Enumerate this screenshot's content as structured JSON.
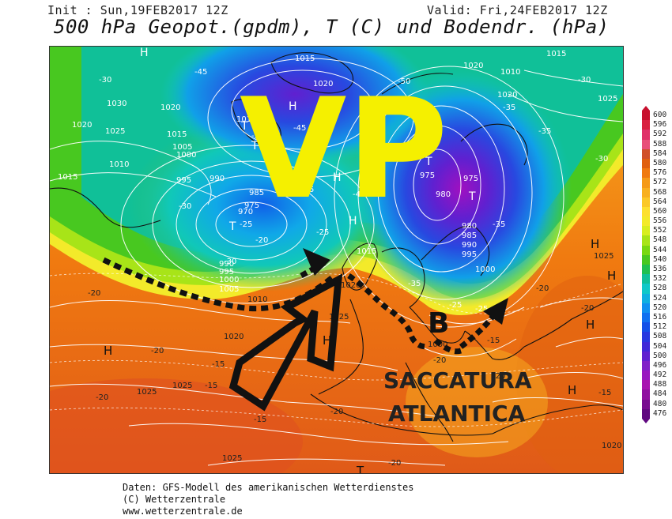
{
  "header": {
    "init": "Init : Sun,19FEB2017 12Z",
    "valid": "Valid: Fri,24FEB2017 12Z",
    "title": "500 hPa Geopot.(gpdm), T (C) und Bodendr. (hPa)"
  },
  "annotations": {
    "vp": "VP",
    "b": "B",
    "saccatura_line1": "SACCATURA",
    "saccatura_line2": "ATLANTICA"
  },
  "pressure_centers": {
    "high": "H",
    "low": "T"
  },
  "contour_labels": {
    "isobars": [
      "1015",
      "1025",
      "1020",
      "1010",
      "1020",
      "1030",
      "1020",
      "1025",
      "1015",
      "1005",
      "1000",
      "995",
      "1010",
      "1015",
      "990",
      "985",
      "975",
      "970",
      "1020",
      "1010",
      "1015",
      "1020",
      "975",
      "980",
      "975",
      "980",
      "985",
      "990",
      "995",
      "1000",
      "1015",
      "1020",
      "1025",
      "990",
      "995",
      "1000",
      "1005",
      "1010",
      "1020",
      "1025",
      "1025",
      "1025",
      "1025",
      "1025",
      "1015",
      "1000",
      "1020"
    ],
    "temperatures": [
      "-30",
      "-45",
      "-35",
      "-35",
      "-30",
      "-30",
      "-35",
      "-45",
      "-50",
      "-35",
      "-40",
      "-30",
      "-25",
      "-20",
      "-25",
      "-30",
      "-20",
      "-15",
      "-35",
      "-25",
      "-20",
      "-20",
      "-15",
      "-15",
      "-20",
      "-20",
      "-15",
      "-20",
      "-20",
      "-20",
      "-15",
      "-20",
      "-25",
      "-35"
    ]
  },
  "legend": {
    "label_title": "gpdm",
    "values": [
      "600",
      "596",
      "592",
      "588",
      "584",
      "580",
      "576",
      "572",
      "568",
      "564",
      "560",
      "556",
      "552",
      "548",
      "544",
      "540",
      "536",
      "532",
      "528",
      "524",
      "520",
      "516",
      "512",
      "508",
      "504",
      "500",
      "496",
      "492",
      "488",
      "484",
      "480",
      "476"
    ],
    "colors": [
      "#c8102e",
      "#d92040",
      "#e0306a",
      "#e8507a",
      "#d0502a",
      "#e06010",
      "#f07a10",
      "#f59a18",
      "#f8b020",
      "#fbc828",
      "#fde030",
      "#f3ea2a",
      "#d8ee20",
      "#a8e418",
      "#78d810",
      "#48c820",
      "#20c050",
      "#10c098",
      "#10c8c8",
      "#10b0e0",
      "#1090f0",
      "#1070f0",
      "#1450e8",
      "#2838e0",
      "#4028d8",
      "#6020d0",
      "#8020c8",
      "#9818c0",
      "#a814b0",
      "#9010a0",
      "#780c90",
      "#600880"
    ]
  },
  "footer": {
    "line1": "Daten: GFS-Modell des amerikanischen Wetterdienstes",
    "line2": "(C) Wetterzentrale",
    "line3": "www.wetterzentrale.de"
  }
}
